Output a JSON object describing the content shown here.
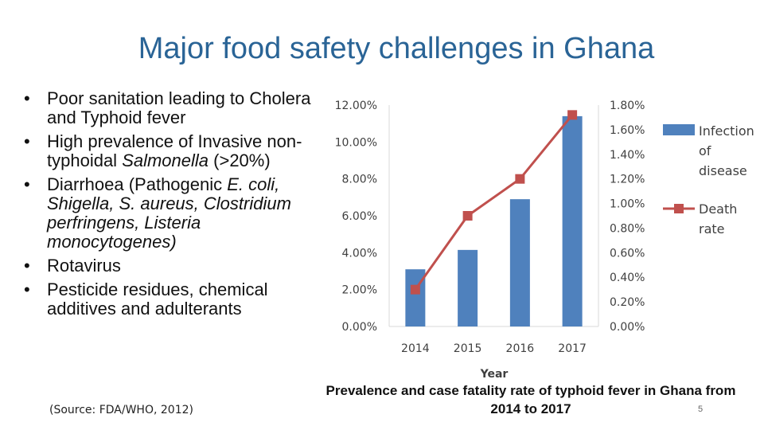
{
  "slide": {
    "title": "Major food safety challenges in Ghana",
    "bullets": [
      {
        "parts": [
          {
            "text": "Poor sanitation leading to Cholera and Typhoid fever"
          }
        ]
      },
      {
        "parts": [
          {
            "text": "High prevalence of Invasive non-typhoidal "
          },
          {
            "text": "Salmonella",
            "italic": true
          },
          {
            "text": " (>20%)"
          }
        ]
      },
      {
        "parts": [
          {
            "text": "Diarrhoea (Pathogenic "
          },
          {
            "text": "E. coli, Shigella, S. aureus, Clostridium perfringens, Listeria monocytogenes)",
            "italic": true
          }
        ]
      },
      {
        "parts": [
          {
            "text": "Rotavirus"
          }
        ]
      },
      {
        "parts": [
          {
            "text": "Pesticide residues, chemical additives and adulterants"
          }
        ]
      }
    ],
    "source": "(Source: FDA/WHO, 2012)",
    "caption": "Prevalence and case fatality rate of typhoid fever in Ghana from 2014 to 2017",
    "page_number": "5"
  },
  "colors": {
    "bar": "#4f81bd",
    "line": "#c0504d",
    "axis": "#d9d9d9",
    "title": "#2a6496"
  },
  "chart_data": {
    "type": "bar+line",
    "categories": [
      "2014",
      "2015",
      "2016",
      "2017"
    ],
    "xlabel": "Year",
    "series": [
      {
        "name": "Infection of disease",
        "type": "bar",
        "axis": "left",
        "values": [
          3.1,
          4.15,
          6.9,
          11.4
        ],
        "unit": "%"
      },
      {
        "name": "Death rate",
        "type": "line",
        "axis": "right",
        "values": [
          0.3,
          0.9,
          1.2,
          1.72
        ],
        "unit": "%"
      }
    ],
    "left_axis": {
      "ylim": [
        0,
        12
      ],
      "ticks": [
        "0.00%",
        "2.00%",
        "4.00%",
        "6.00%",
        "8.00%",
        "10.00%",
        "12.00%"
      ]
    },
    "right_axis": {
      "ylim": [
        0,
        1.8
      ],
      "ticks": [
        "0.00%",
        "0.20%",
        "0.40%",
        "0.60%",
        "0.80%",
        "1.00%",
        "1.20%",
        "1.40%",
        "1.60%",
        "1.80%"
      ]
    },
    "legend": [
      {
        "lines": [
          "Infection",
          "of",
          "disease"
        ],
        "kind": "bar"
      },
      {
        "lines": [
          "Death",
          "rate"
        ],
        "kind": "line"
      }
    ],
    "legend_position": "right"
  }
}
